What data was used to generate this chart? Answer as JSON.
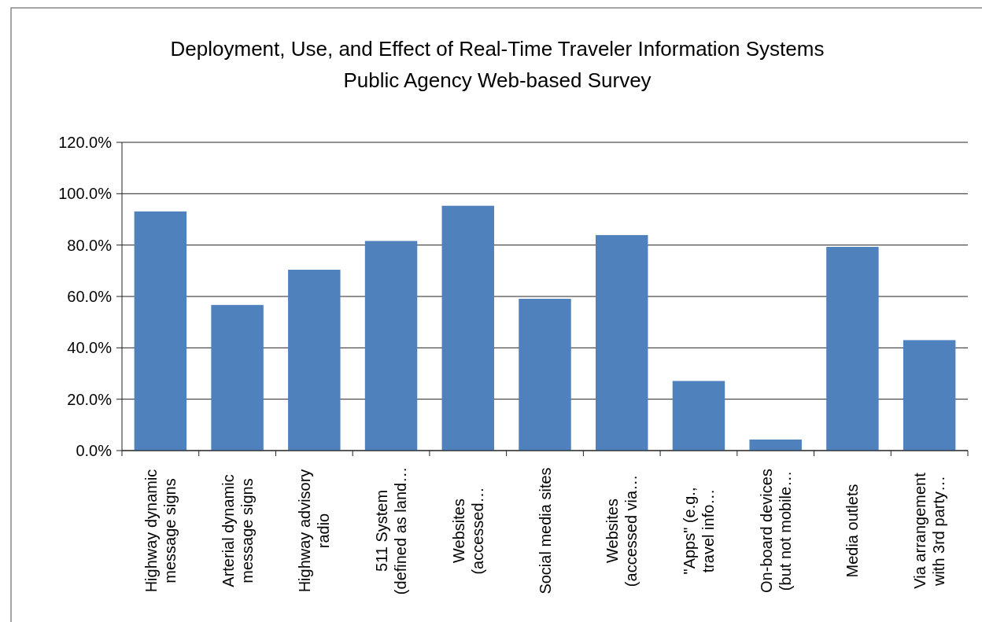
{
  "chart_data": {
    "type": "bar",
    "title": "Deployment, Use, and Effect of Real-Time Traveler Information Systems",
    "subtitle": "Public Agency Web-based Survey",
    "categories": [
      "Highway dynamic\nmessage signs",
      "Arterial dynamic\nmessage signs",
      "Highway advisory\nradio",
      "511 System\n(defined as land…",
      "Websites\n(accessed…",
      "Social media sites",
      "Websites\n(accessed via…",
      "\"Apps\" (e.g.,\ntravel info…",
      "On-board devices\n(but not mobile…",
      "Media outlets",
      "Via arrangement\nwith 3rd party…"
    ],
    "values": [
      93.1,
      56.7,
      70.4,
      81.6,
      95.3,
      59.1,
      83.9,
      27.1,
      4.3,
      79.3,
      43.0
    ],
    "color": "#4f81bd",
    "ylim": [
      0,
      120
    ],
    "yticks": [
      {
        "value": 0,
        "label": "0.0%"
      },
      {
        "value": 20,
        "label": "20.0%"
      },
      {
        "value": 40,
        "label": "40.0%"
      },
      {
        "value": 60,
        "label": "60.0%"
      },
      {
        "value": 80,
        "label": "80.0%"
      },
      {
        "value": 100,
        "label": "100.0%"
      },
      {
        "value": 120,
        "label": "120.0%"
      }
    ],
    "grid": "y"
  }
}
